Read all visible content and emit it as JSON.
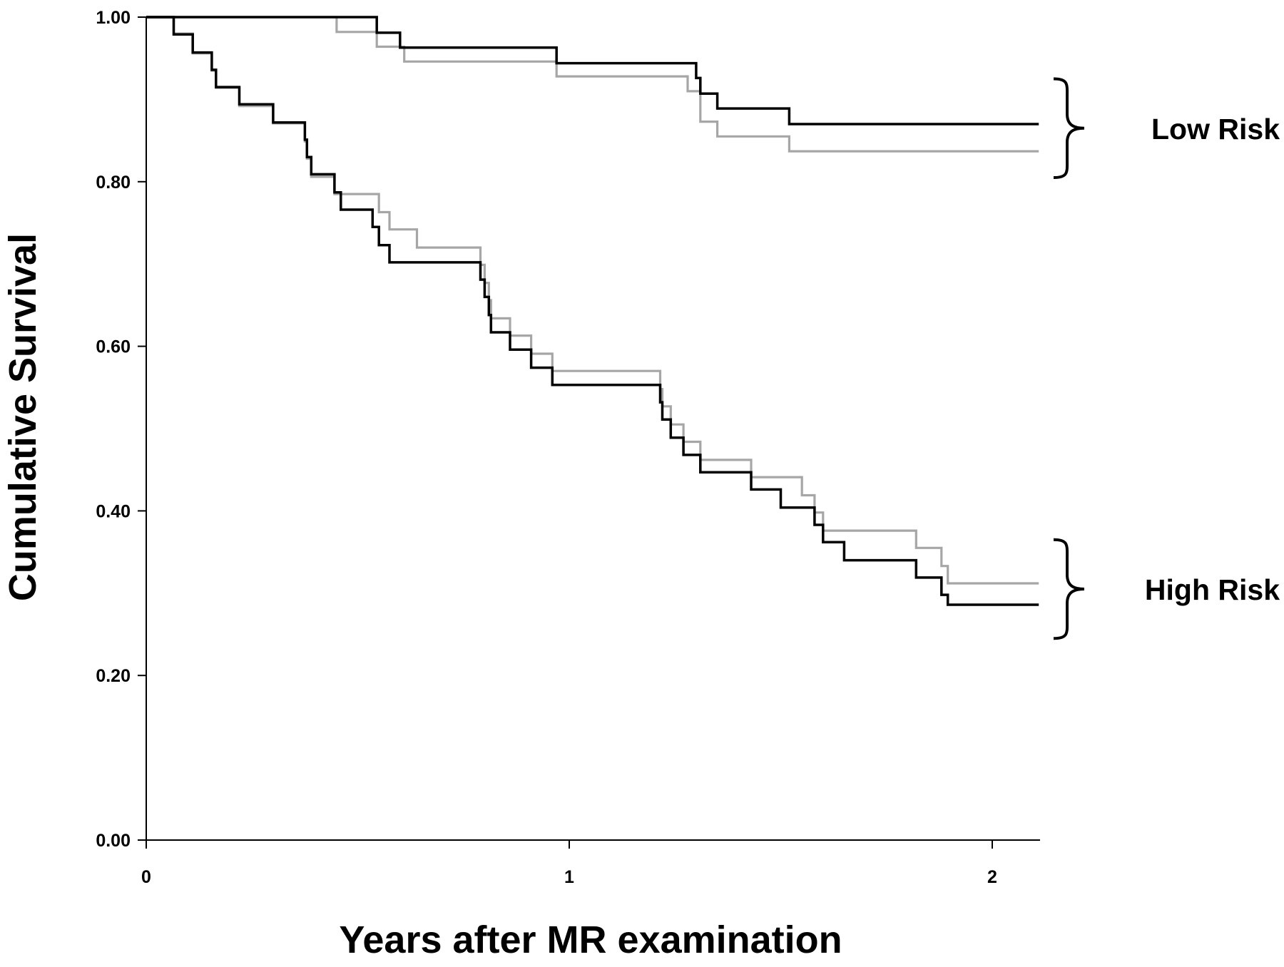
{
  "chart_data": {
    "type": "line",
    "step": true,
    "xlabel": "Years after MR examination",
    "ylabel": "Cumulative Survival",
    "xlim": [
      0,
      2.11
    ],
    "ylim": [
      0,
      1
    ],
    "x_ticks": [
      0,
      1,
      2
    ],
    "x_tick_labels": [
      "0",
      "1",
      "2"
    ],
    "y_ticks": [
      0,
      0.2,
      0.4,
      0.6,
      0.8,
      1.0
    ],
    "y_tick_labels": [
      "0.00",
      "0.20",
      "0.40",
      "0.60",
      "0.80",
      "1.00"
    ],
    "grid": false,
    "colors": {
      "black": "#000000",
      "gray": "#a6a6a6"
    },
    "groups": [
      {
        "label": "Low Risk",
        "y_range": [
          0.805,
          0.925
        ]
      },
      {
        "label": "High Risk",
        "y_range": [
          0.245,
          0.365
        ]
      }
    ],
    "series": [
      {
        "color": "#000000",
        "group": "Low Risk",
        "points": [
          [
            0,
            1.0
          ],
          [
            0.545,
            0.981
          ],
          [
            0.6,
            0.963
          ],
          [
            0.97,
            0.944
          ],
          [
            1.3,
            0.926
          ],
          [
            1.31,
            0.907
          ],
          [
            1.35,
            0.889
          ],
          [
            1.52,
            0.87
          ],
          [
            2.11,
            0.87
          ]
        ]
      },
      {
        "color": "#a6a6a6",
        "group": "Low Risk",
        "points": [
          [
            0,
            1.0
          ],
          [
            0.45,
            0.982
          ],
          [
            0.545,
            0.964
          ],
          [
            0.61,
            0.946
          ],
          [
            0.97,
            0.928
          ],
          [
            1.28,
            0.91
          ],
          [
            1.31,
            0.873
          ],
          [
            1.35,
            0.855
          ],
          [
            1.52,
            0.837
          ],
          [
            2.11,
            0.837
          ]
        ]
      },
      {
        "color": "#000000",
        "group": "High Risk",
        "points": [
          [
            0,
            1.0
          ],
          [
            0.065,
            0.979
          ],
          [
            0.11,
            0.957
          ],
          [
            0.155,
            0.936
          ],
          [
            0.165,
            0.915
          ],
          [
            0.22,
            0.894
          ],
          [
            0.3,
            0.872
          ],
          [
            0.375,
            0.851
          ],
          [
            0.38,
            0.83
          ],
          [
            0.39,
            0.809
          ],
          [
            0.445,
            0.787
          ],
          [
            0.46,
            0.766
          ],
          [
            0.535,
            0.745
          ],
          [
            0.55,
            0.723
          ],
          [
            0.575,
            0.702
          ],
          [
            0.79,
            0.681
          ],
          [
            0.8,
            0.66
          ],
          [
            0.81,
            0.638
          ],
          [
            0.815,
            0.617
          ],
          [
            0.86,
            0.596
          ],
          [
            0.91,
            0.574
          ],
          [
            0.96,
            0.553
          ],
          [
            1.215,
            0.532
          ],
          [
            1.22,
            0.511
          ],
          [
            1.24,
            0.489
          ],
          [
            1.27,
            0.468
          ],
          [
            1.31,
            0.447
          ],
          [
            1.43,
            0.426
          ],
          [
            1.5,
            0.404
          ],
          [
            1.58,
            0.383
          ],
          [
            1.6,
            0.362
          ],
          [
            1.65,
            0.34
          ],
          [
            1.82,
            0.319
          ],
          [
            1.88,
            0.298
          ],
          [
            1.895,
            0.286
          ],
          [
            2.11,
            0.286
          ]
        ]
      },
      {
        "color": "#a6a6a6",
        "group": "High Risk",
        "points": [
          [
            0,
            1.0
          ],
          [
            0.065,
            0.98
          ],
          [
            0.11,
            0.956
          ],
          [
            0.155,
            0.935
          ],
          [
            0.165,
            0.914
          ],
          [
            0.22,
            0.892
          ],
          [
            0.3,
            0.871
          ],
          [
            0.375,
            0.849
          ],
          [
            0.38,
            0.828
          ],
          [
            0.39,
            0.806
          ],
          [
            0.445,
            0.785
          ],
          [
            0.55,
            0.763
          ],
          [
            0.575,
            0.742
          ],
          [
            0.64,
            0.72
          ],
          [
            0.79,
            0.699
          ],
          [
            0.8,
            0.677
          ],
          [
            0.81,
            0.656
          ],
          [
            0.815,
            0.634
          ],
          [
            0.86,
            0.613
          ],
          [
            0.91,
            0.591
          ],
          [
            0.96,
            0.57
          ],
          [
            1.215,
            0.548
          ],
          [
            1.22,
            0.527
          ],
          [
            1.24,
            0.505
          ],
          [
            1.27,
            0.484
          ],
          [
            1.31,
            0.462
          ],
          [
            1.43,
            0.441
          ],
          [
            1.55,
            0.419
          ],
          [
            1.58,
            0.398
          ],
          [
            1.6,
            0.376
          ],
          [
            1.82,
            0.355
          ],
          [
            1.88,
            0.333
          ],
          [
            1.895,
            0.312
          ],
          [
            2.11,
            0.312
          ]
        ]
      }
    ]
  }
}
